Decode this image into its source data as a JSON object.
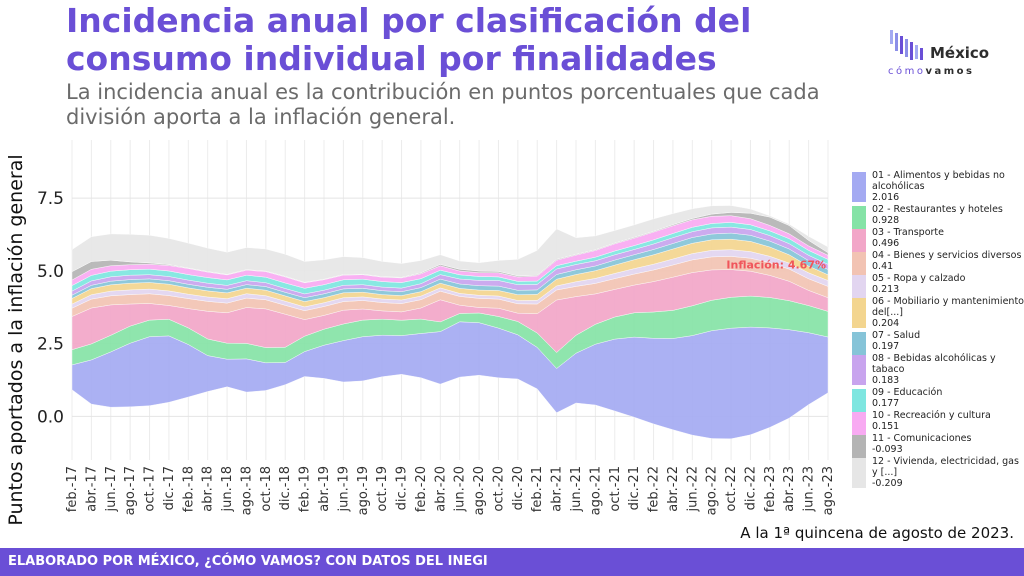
{
  "header": {
    "title": "Incidencia anual por clasificación del consumo individual por finalidades",
    "subtitle": "La incidencia anual es la contribución en puntos porcentuales que cada división aporta a la inflación general."
  },
  "logo": {
    "word": "México",
    "sub_a": "cómo",
    "sub_b": "vamos"
  },
  "footer": {
    "source": "ELABORADO POR MÉXICO, ¿CÓMO VAMOS? CON DATOS DEL INEGI",
    "date_note": "A la 1ª quincena de agosto de 2023."
  },
  "chart_data": {
    "type": "area",
    "stacked": "streamgraph",
    "ylabel": "Puntos aportados a la inflación general",
    "ylim": [
      -1.5,
      9.5
    ],
    "yticks": [
      0.0,
      2.5,
      5.0,
      7.5
    ],
    "ytick_labels": [
      "0.0",
      "2.5",
      "5.0",
      "7.5"
    ],
    "grid": true,
    "legend_position": "right",
    "x_tick_labels": [
      "feb.-17",
      "abr.-17",
      "jun.-17",
      "ago.-17",
      "oct.-17",
      "dic.-17",
      "feb.-18",
      "abr.-18",
      "jun.-18",
      "ago.-18",
      "oct.-18",
      "dic.-18",
      "feb.-19",
      "abr.-19",
      "jun.-19",
      "ago.-19",
      "oct.-19",
      "dic.-19",
      "feb.-20",
      "abr.-20",
      "jun.-20",
      "ago.-20",
      "oct.-20",
      "dic.-20",
      "feb.-21",
      "abr.-21",
      "jun.-21",
      "ago.-21",
      "oct.-21",
      "dic.-21",
      "feb.-22",
      "abr.-22",
      "jun.-22",
      "ago.-22",
      "oct.-22",
      "dic.-22",
      "feb.-23",
      "abr.-23",
      "jun.-23",
      "ago.-23"
    ],
    "annotation": {
      "text": "Inflación: 4.67%",
      "value": 4.67,
      "color": "#f0555b"
    },
    "series": [
      {
        "name": "01 - Alimentos y bebidas no alcohólicas",
        "last": "2.016",
        "color": "#a4aaf2",
        "values": [
          0.9,
          1.6,
          2.0,
          2.3,
          2.5,
          2.4,
          1.9,
          1.3,
          1.0,
          1.2,
          1.0,
          0.8,
          0.9,
          1.2,
          1.5,
          1.6,
          1.5,
          1.4,
          1.6,
          1.9,
          2.0,
          1.9,
          1.8,
          1.6,
          1.5,
          1.6,
          1.8,
          2.2,
          2.6,
          2.9,
          3.1,
          3.3,
          3.6,
          3.9,
          4.0,
          3.9,
          3.6,
          3.2,
          2.6,
          2.016
        ]
      },
      {
        "name": "02 - Restaurantes y hoteles",
        "last": "0.928",
        "color": "#85e3a6",
        "values": [
          0.55,
          0.58,
          0.6,
          0.62,
          0.6,
          0.6,
          0.6,
          0.6,
          0.58,
          0.56,
          0.55,
          0.55,
          0.56,
          0.58,
          0.6,
          0.6,
          0.58,
          0.56,
          0.52,
          0.35,
          0.3,
          0.35,
          0.42,
          0.48,
          0.52,
          0.58,
          0.65,
          0.72,
          0.8,
          0.88,
          0.95,
          1.02,
          1.08,
          1.1,
          1.12,
          1.12,
          1.1,
          1.05,
          0.98,
          0.928
        ]
      },
      {
        "name": "03 - Transporte",
        "last": "0.496",
        "color": "#f2a6c8",
        "values": [
          1.2,
          1.3,
          1.1,
          0.8,
          0.6,
          0.5,
          0.7,
          1.0,
          1.1,
          1.3,
          1.4,
          1.2,
          0.6,
          0.5,
          0.5,
          0.4,
          0.3,
          0.3,
          0.4,
          -0.8,
          -0.3,
          0.2,
          0.3,
          0.3,
          0.7,
          1.9,
          1.4,
          1.1,
          1.0,
          1.0,
          1.1,
          1.2,
          1.2,
          1.1,
          1.0,
          0.9,
          0.8,
          0.7,
          0.55,
          0.496
        ]
      },
      {
        "name": "04 - Bienes y servicios diversos",
        "last": "0.41",
        "color": "#f2c3b3",
        "values": [
          0.3,
          0.32,
          0.33,
          0.34,
          0.35,
          0.36,
          0.36,
          0.36,
          0.35,
          0.34,
          0.33,
          0.32,
          0.32,
          0.32,
          0.31,
          0.31,
          0.3,
          0.3,
          0.3,
          0.31,
          0.32,
          0.33,
          0.33,
          0.34,
          0.35,
          0.36,
          0.37,
          0.38,
          0.39,
          0.4,
          0.42,
          0.44,
          0.46,
          0.47,
          0.48,
          0.47,
          0.46,
          0.44,
          0.42,
          0.41
        ]
      },
      {
        "name": "05 - Ropa y calzado",
        "last": "0.213",
        "color": "#e2d5f0",
        "values": [
          0.15,
          0.16,
          0.17,
          0.17,
          0.17,
          0.17,
          0.16,
          0.16,
          0.16,
          0.16,
          0.15,
          0.15,
          0.14,
          0.14,
          0.14,
          0.13,
          0.13,
          0.13,
          0.13,
          0.12,
          0.11,
          0.11,
          0.11,
          0.12,
          0.13,
          0.15,
          0.17,
          0.18,
          0.19,
          0.2,
          0.21,
          0.22,
          0.23,
          0.24,
          0.24,
          0.24,
          0.23,
          0.22,
          0.22,
          0.213
        ]
      },
      {
        "name": "06 - Mobiliario y mantenimiento del[...]",
        "last": "0.204",
        "color": "#f3d58f",
        "values": [
          0.2,
          0.22,
          0.23,
          0.24,
          0.24,
          0.24,
          0.23,
          0.22,
          0.21,
          0.2,
          0.2,
          0.19,
          0.19,
          0.18,
          0.18,
          0.17,
          0.16,
          0.16,
          0.16,
          0.17,
          0.18,
          0.19,
          0.2,
          0.21,
          0.22,
          0.24,
          0.26,
          0.28,
          0.3,
          0.32,
          0.34,
          0.36,
          0.37,
          0.38,
          0.38,
          0.37,
          0.34,
          0.3,
          0.24,
          0.204
        ]
      },
      {
        "name": "07 - Salud",
        "last": "0.197",
        "color": "#86c4d8",
        "values": [
          0.12,
          0.12,
          0.13,
          0.13,
          0.13,
          0.13,
          0.13,
          0.13,
          0.13,
          0.13,
          0.13,
          0.13,
          0.14,
          0.14,
          0.14,
          0.14,
          0.14,
          0.14,
          0.15,
          0.15,
          0.16,
          0.16,
          0.16,
          0.16,
          0.16,
          0.17,
          0.17,
          0.17,
          0.18,
          0.18,
          0.19,
          0.2,
          0.21,
          0.21,
          0.22,
          0.22,
          0.21,
          0.21,
          0.2,
          0.197
        ]
      },
      {
        "name": "08 - Bebidas alcohólicas y tabaco",
        "last": "0.183",
        "color": "#c8a4ee",
        "values": [
          0.15,
          0.16,
          0.16,
          0.16,
          0.15,
          0.15,
          0.15,
          0.15,
          0.14,
          0.14,
          0.14,
          0.14,
          0.14,
          0.13,
          0.13,
          0.13,
          0.13,
          0.13,
          0.14,
          0.16,
          0.18,
          0.19,
          0.2,
          0.2,
          0.2,
          0.2,
          0.19,
          0.19,
          0.19,
          0.19,
          0.2,
          0.21,
          0.21,
          0.22,
          0.22,
          0.21,
          0.2,
          0.19,
          0.19,
          0.183
        ]
      },
      {
        "name": "09 - Educación",
        "last": "0.177",
        "color": "#7ee6e0",
        "values": [
          0.2,
          0.2,
          0.2,
          0.2,
          0.2,
          0.2,
          0.2,
          0.2,
          0.2,
          0.2,
          0.2,
          0.2,
          0.2,
          0.2,
          0.2,
          0.2,
          0.2,
          0.2,
          0.18,
          0.16,
          0.15,
          0.14,
          0.13,
          0.12,
          0.12,
          0.12,
          0.12,
          0.13,
          0.14,
          0.14,
          0.15,
          0.15,
          0.16,
          0.16,
          0.17,
          0.17,
          0.17,
          0.18,
          0.18,
          0.177
        ]
      },
      {
        "name": "10 - Recreación y cultura",
        "last": "0.151",
        "color": "#f8aaf2",
        "values": [
          0.2,
          0.22,
          0.2,
          0.18,
          0.18,
          0.2,
          0.22,
          0.2,
          0.18,
          0.18,
          0.2,
          0.22,
          0.2,
          0.18,
          0.17,
          0.16,
          0.16,
          0.17,
          0.18,
          0.16,
          0.14,
          0.14,
          0.15,
          0.16,
          0.18,
          0.2,
          0.22,
          0.24,
          0.26,
          0.27,
          0.28,
          0.28,
          0.27,
          0.26,
          0.24,
          0.22,
          0.2,
          0.18,
          0.16,
          0.151
        ]
      },
      {
        "name": "11 - Comunicaciones",
        "last": "-0.093",
        "color": "#b4b4b4",
        "values": [
          -0.3,
          -0.28,
          -0.2,
          -0.1,
          -0.05,
          -0.03,
          -0.02,
          -0.02,
          -0.02,
          -0.02,
          -0.02,
          -0.02,
          -0.02,
          -0.02,
          -0.02,
          -0.02,
          -0.02,
          -0.02,
          -0.03,
          -0.05,
          -0.06,
          -0.06,
          -0.05,
          -0.04,
          -0.03,
          -0.03,
          -0.03,
          -0.03,
          -0.03,
          -0.03,
          -0.03,
          -0.04,
          -0.05,
          -0.08,
          -0.12,
          -0.2,
          -0.3,
          -0.3,
          -0.2,
          -0.093
        ]
      },
      {
        "name": "12 - Vivienda, electricidad, gas y [...]",
        "last": "-0.209",
        "color": "#e6e6e6",
        "values": [
          0.8,
          0.9,
          0.95,
          1.0,
          1.0,
          0.95,
          0.9,
          0.85,
          0.8,
          0.8,
          0.8,
          0.8,
          0.75,
          0.7,
          0.65,
          0.6,
          0.55,
          0.5,
          0.45,
          0.35,
          0.3,
          0.3,
          0.4,
          0.6,
          0.9,
          1.1,
          0.6,
          0.5,
          0.45,
          0.45,
          0.45,
          0.4,
          0.35,
          0.3,
          0.25,
          0.15,
          0.05,
          -0.05,
          -0.15,
          -0.209
        ]
      }
    ]
  }
}
